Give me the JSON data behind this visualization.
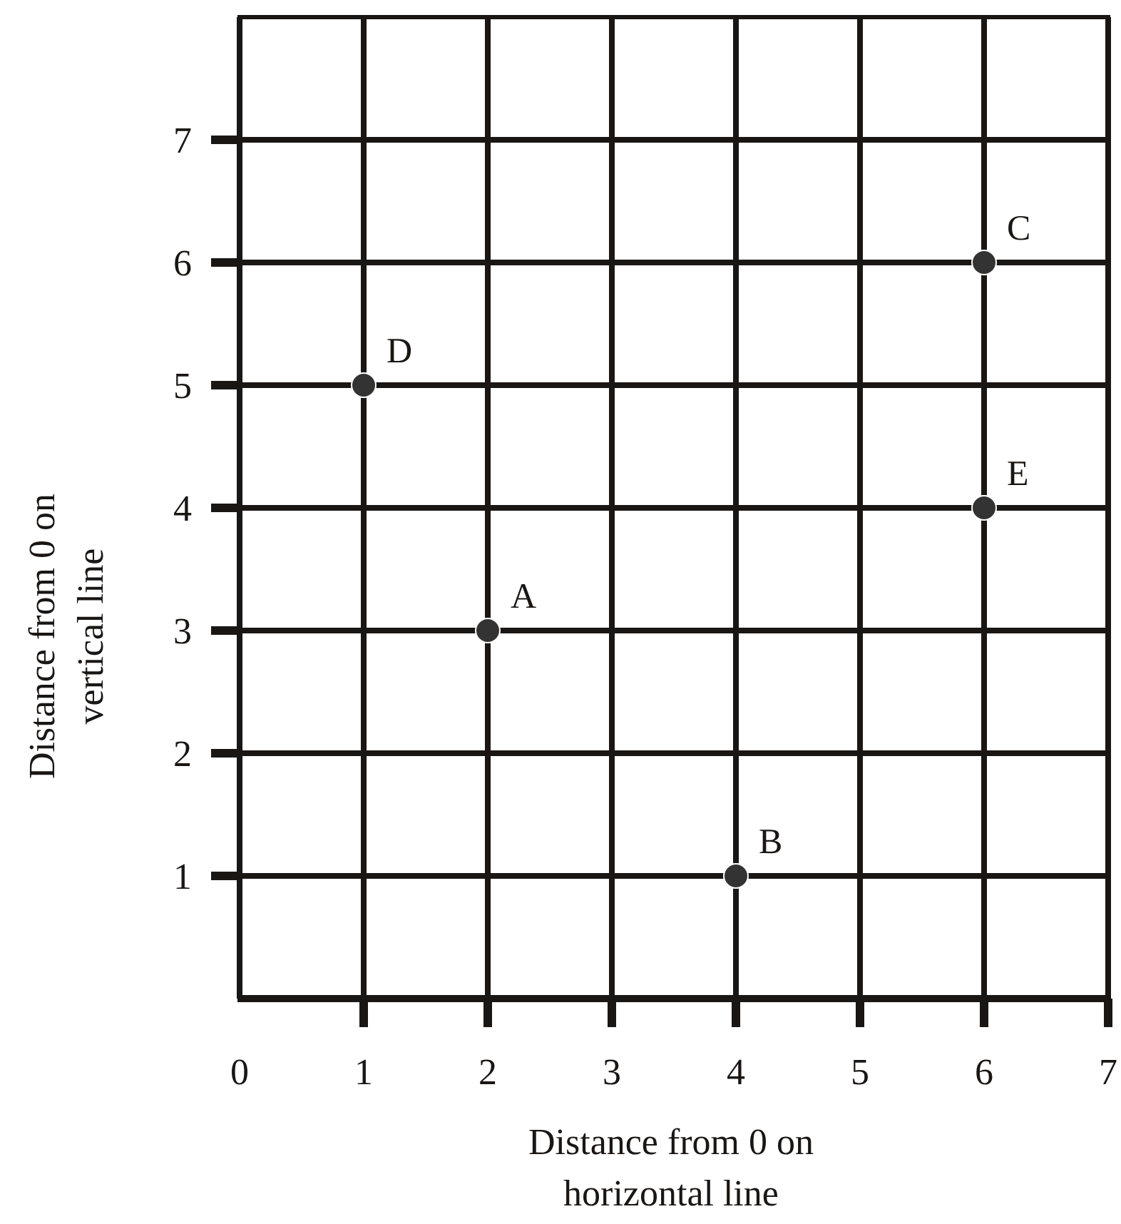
{
  "chart_data": {
    "type": "scatter",
    "xlabel": "Distance from 0 on\nhorizontal line",
    "ylabel": "Distance from 0 on\nvertical line",
    "x": [
      2,
      4,
      6,
      1,
      6
    ],
    "values": [
      3,
      1,
      6,
      5,
      4
    ],
    "color": "#333333",
    "marker": "circle",
    "xlim": [
      0,
      7
    ],
    "ylim": [
      0,
      8
    ],
    "xticks": [
      0,
      1,
      2,
      3,
      4,
      5,
      6,
      7
    ],
    "yticks": [
      1,
      2,
      3,
      4,
      5,
      6,
      7
    ],
    "grid": true,
    "annotations": [
      {
        "text": "A",
        "x": 2,
        "y": 3
      },
      {
        "text": "B",
        "x": 4,
        "y": 1
      },
      {
        "text": "C",
        "x": 6,
        "y": 6
      },
      {
        "text": "D",
        "x": 1,
        "y": 5
      },
      {
        "text": "E",
        "x": 6,
        "y": 4
      }
    ]
  }
}
